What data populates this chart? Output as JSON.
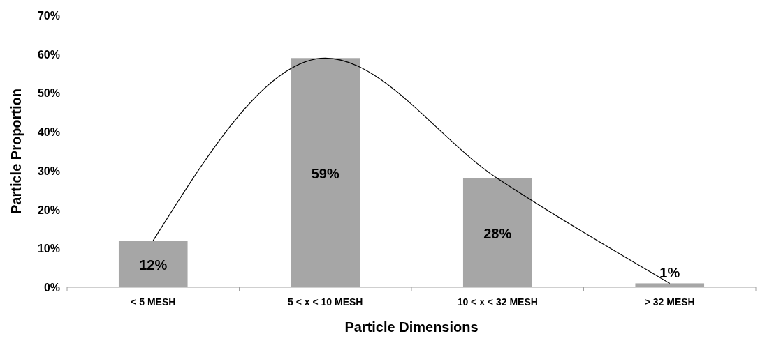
{
  "chart_data": {
    "type": "bar",
    "xlabel": "Particle Dimensions",
    "ylabel": "Particle Proportion",
    "categories": [
      "< 5 MESH",
      "5 < x < 10 MESH",
      "10 < x < 32 MESH",
      "> 32 MESH"
    ],
    "series": [
      {
        "color": "#a6a6a6",
        "values": [
          12,
          59,
          28,
          1
        ],
        "value_labels": [
          "12%",
          "59%",
          "28%",
          "1%"
        ]
      },
      {
        "type": "line",
        "color": "#000000",
        "values": [
          12,
          59,
          28,
          1
        ]
      }
    ],
    "ylim": [
      0,
      70
    ],
    "yticks": [
      {
        "value": 0,
        "label": "0%"
      },
      {
        "value": 10,
        "label": "10%"
      },
      {
        "value": 20,
        "label": "20%"
      },
      {
        "value": 30,
        "label": "30%"
      },
      {
        "value": 40,
        "label": "40%"
      },
      {
        "value": 50,
        "label": "50%"
      },
      {
        "value": 60,
        "label": "60%"
      },
      {
        "value": 70,
        "label": "70%"
      }
    ],
    "grid": false,
    "marker": "none",
    "line_style": "solid"
  }
}
